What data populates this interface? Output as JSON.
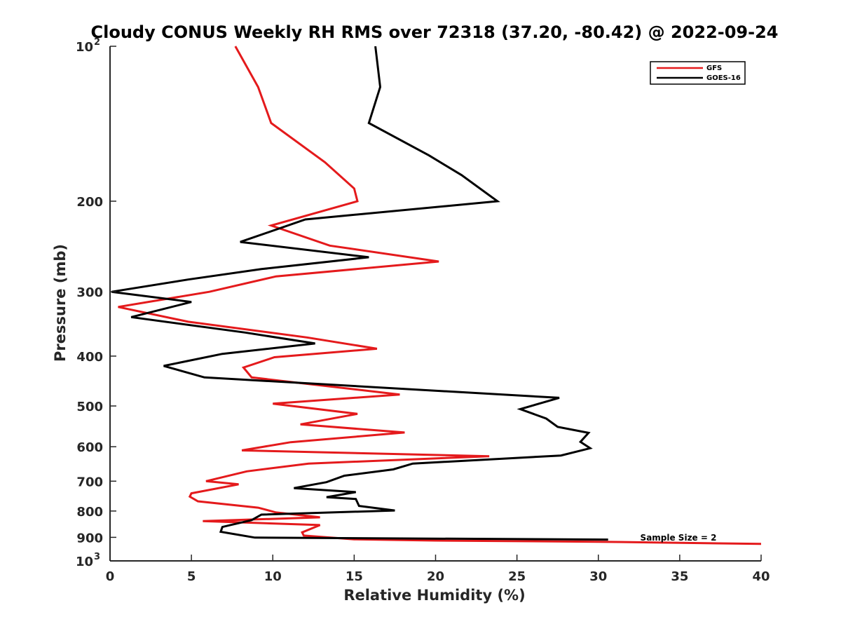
{
  "chart_data": {
    "type": "line",
    "title": "Cloudy CONUS Weekly RH RMS over 72318 (37.20, -80.42) @ 2022-09-24",
    "xlabel": "Relative Humidity (%)",
    "ylabel": "Pressure (mb)",
    "xlim": [
      0,
      40
    ],
    "ylim": [
      100,
      1000
    ],
    "yscale": "log",
    "y_reversed": true,
    "x_ticks": [
      0,
      5,
      10,
      15,
      20,
      25,
      30,
      35,
      40
    ],
    "y_ticks": [
      {
        "value": 100,
        "label": "10",
        "exp": "2"
      },
      {
        "value": 200,
        "label": "200"
      },
      {
        "value": 300,
        "label": "300"
      },
      {
        "value": 400,
        "label": "400"
      },
      {
        "value": 500,
        "label": "500"
      },
      {
        "value": 600,
        "label": "600"
      },
      {
        "value": 700,
        "label": "700"
      },
      {
        "value": 800,
        "label": "800"
      },
      {
        "value": 900,
        "label": "900"
      },
      {
        "value": 1000,
        "label": "10",
        "exp": "3"
      }
    ],
    "legend_position": "top-right",
    "annotation": "Sample Size = 2",
    "series": [
      {
        "name": "GFS",
        "color": "#e41a1c",
        "points": [
          [
            7.7,
            100
          ],
          [
            9.1,
            120
          ],
          [
            9.9,
            141
          ],
          [
            13.2,
            168
          ],
          [
            15.0,
            189
          ],
          [
            15.2,
            200
          ],
          [
            9.9,
            223
          ],
          [
            13.5,
            244
          ],
          [
            20.2,
            262
          ],
          [
            10.2,
            280
          ],
          [
            6.1,
            300
          ],
          [
            0.5,
            321
          ],
          [
            4.8,
            343
          ],
          [
            12.1,
            368
          ],
          [
            16.4,
            387
          ],
          [
            10.1,
            402
          ],
          [
            8.2,
            421
          ],
          [
            8.7,
            440
          ],
          [
            17.8,
            475
          ],
          [
            10.0,
            495
          ],
          [
            15.2,
            518
          ],
          [
            11.7,
            543
          ],
          [
            18.1,
            563
          ],
          [
            11.1,
            588
          ],
          [
            8.1,
            610
          ],
          [
            23.3,
            626
          ],
          [
            12.2,
            647
          ],
          [
            8.4,
            670
          ],
          [
            5.9,
            700
          ],
          [
            7.9,
            710
          ],
          [
            5.0,
            739
          ],
          [
            4.9,
            750
          ],
          [
            5.4,
            766
          ],
          [
            9.1,
            788
          ],
          [
            10.2,
            805
          ],
          [
            12.9,
            823
          ],
          [
            5.7,
            837
          ],
          [
            12.9,
            852
          ],
          [
            11.8,
            880
          ],
          [
            11.9,
            893
          ],
          [
            15.0,
            908
          ],
          [
            20.0,
            913
          ],
          [
            30.0,
            918
          ],
          [
            40.0,
            927
          ]
        ]
      },
      {
        "name": "GOES-16",
        "color": "#000000",
        "points": [
          [
            16.3,
            100
          ],
          [
            16.6,
            120
          ],
          [
            15.9,
            141
          ],
          [
            19.6,
            163
          ],
          [
            21.6,
            178
          ],
          [
            23.8,
            200
          ],
          [
            12.0,
            217
          ],
          [
            8.0,
            240
          ],
          [
            15.9,
            257
          ],
          [
            9.3,
            271
          ],
          [
            4.8,
            284
          ],
          [
            0.1,
            300
          ],
          [
            5.0,
            314
          ],
          [
            1.3,
            336
          ],
          [
            8.3,
            360
          ],
          [
            12.6,
            378
          ],
          [
            6.9,
            396
          ],
          [
            3.3,
            418
          ],
          [
            5.8,
            440
          ],
          [
            27.6,
            482
          ],
          [
            25.2,
            507
          ],
          [
            26.8,
            529
          ],
          [
            27.5,
            549
          ],
          [
            29.4,
            564
          ],
          [
            28.9,
            587
          ],
          [
            29.5,
            604
          ],
          [
            27.7,
            624
          ],
          [
            18.6,
            647
          ],
          [
            17.4,
            664
          ],
          [
            14.4,
            683
          ],
          [
            13.3,
            703
          ],
          [
            11.3,
            722
          ],
          [
            15.1,
            735
          ],
          [
            13.3,
            752
          ],
          [
            15.1,
            758
          ],
          [
            15.3,
            782
          ],
          [
            17.5,
            798
          ],
          [
            9.3,
            813
          ],
          [
            8.7,
            833
          ],
          [
            6.9,
            859
          ],
          [
            6.8,
            878
          ],
          [
            8.9,
            901
          ],
          [
            30.6,
            909
          ]
        ]
      }
    ]
  }
}
